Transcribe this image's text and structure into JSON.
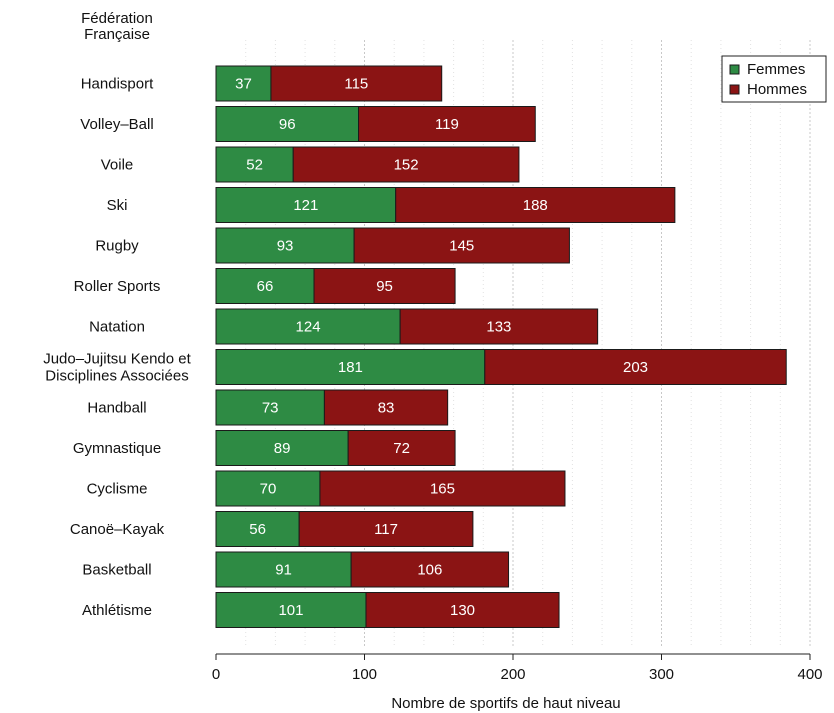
{
  "chart_data": {
    "type": "bar",
    "orientation": "horizontal",
    "stacked": true,
    "title": "Fédération\nFrançaise",
    "xlabel": "Nombre de sportifs de haut niveau",
    "xlim": [
      0,
      400
    ],
    "xticks": [
      0,
      100,
      200,
      300,
      400
    ],
    "grid": "vertical-dotted",
    "legend_position": "top-right",
    "categories": [
      "Handisport",
      "Volley–Ball",
      "Voile",
      "Ski",
      "Rugby",
      "Roller Sports",
      "Natation",
      "Judo–Jujitsu Kendo et\nDisciplines Associées",
      "Handball",
      "Gymnastique",
      "Cyclisme",
      "Canoë–Kayak",
      "Basketball",
      "Athlétisme"
    ],
    "series": [
      {
        "name": "Femmes",
        "color": "#2e8b44",
        "values": [
          37,
          96,
          52,
          121,
          93,
          66,
          124,
          181,
          73,
          89,
          70,
          56,
          91,
          101
        ]
      },
      {
        "name": "Hommes",
        "color": "#8b1414",
        "values": [
          115,
          119,
          152,
          188,
          145,
          95,
          133,
          203,
          83,
          72,
          165,
          117,
          106,
          130
        ]
      }
    ]
  }
}
